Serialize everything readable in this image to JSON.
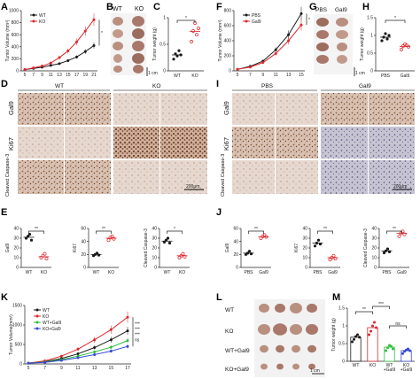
{
  "panel_letters": [
    "A",
    "B",
    "C",
    "D",
    "E",
    "F",
    "G",
    "H",
    "I",
    "J",
    "K",
    "L",
    "M"
  ],
  "colors": {
    "black": "#1a1a1a",
    "red": "#e0262c",
    "green": "#2fbf3b",
    "blue": "#3345d6",
    "tissue": "#b98f80",
    "stain_brown": "#7a4a2e",
    "stain_bg": "#c9a993"
  },
  "texts": {
    "B_wt": "WT",
    "B_ko": "KO",
    "B_scale": "1 cm",
    "D_wt": "WT",
    "D_ko": "KO",
    "D_row1": "Gal9",
    "D_row2": "Ki67",
    "D_row3": "Cleaved Caspase-3",
    "D_scale": "200μm",
    "G_pbs": "PBS",
    "G_gal9": "Gal9",
    "G_scale": "1 cm",
    "I_pbs": "PBS",
    "I_gal9": "Gal9",
    "I_row1": "Gal9",
    "I_row2": "Ki67",
    "I_row3": "Cleaved Caspase-3",
    "I_scale": "200μm",
    "L_row1": "WT",
    "L_row2": "KO",
    "L_row3": "WT+Gal9",
    "L_row4": "KO+Gal9",
    "L_scale": "1 cm",
    "sig_star": "*",
    "sig_double": "**",
    "sig_triple": "***",
    "sig_ns": "ns"
  },
  "chart_data": [
    {
      "id": "A",
      "type": "line",
      "ylabel": "Tumor Volume (mm³)",
      "ylim": [
        0,
        1000
      ],
      "yticks": [
        0,
        200,
        400,
        600,
        800,
        1000
      ],
      "x": [
        5,
        7,
        9,
        11,
        13,
        15,
        17,
        19,
        21
      ],
      "series": [
        {
          "name": "WT",
          "color": "#1a1a1a",
          "values": [
            20,
            40,
            60,
            90,
            120,
            170,
            230,
            320,
            420
          ]
        },
        {
          "name": "KO",
          "color": "#e0262c",
          "values": [
            20,
            50,
            80,
            130,
            220,
            330,
            480,
            660,
            850
          ]
        }
      ],
      "sig": "*"
    },
    {
      "id": "C",
      "type": "scatter",
      "ylabel": "Tumor weight (g)",
      "ylim": [
        0,
        1.0
      ],
      "yticks": [
        0,
        0.5,
        1.0
      ],
      "categories": [
        "WT",
        "KO"
      ],
      "colors": [
        "#1a1a1a",
        "#e0262c"
      ],
      "points": [
        [
          0.22,
          0.32,
          0.28,
          0.38,
          0.3
        ],
        [
          0.55,
          0.75,
          0.9,
          0.68,
          0.8
        ]
      ],
      "means": [
        0.3,
        0.74
      ],
      "sig": "*"
    },
    {
      "id": "F",
      "type": "line",
      "ylabel": "Tumor Volume (mm³)",
      "ylim": [
        0,
        800
      ],
      "yticks": [
        0,
        200,
        400,
        600,
        800
      ],
      "x": [
        5,
        7,
        9,
        11,
        13,
        15
      ],
      "series": [
        {
          "name": "PBS",
          "color": "#1a1a1a",
          "values": [
            20,
            60,
            130,
            280,
            480,
            760
          ]
        },
        {
          "name": "Gal9",
          "color": "#e0262c",
          "values": [
            20,
            50,
            110,
            230,
            400,
            610
          ]
        }
      ],
      "sig": "*"
    },
    {
      "id": "H",
      "type": "scatter",
      "ylabel": "Tumor weight (g)",
      "ylim": [
        0,
        1.5
      ],
      "yticks": [
        0,
        0.5,
        1.0,
        1.5
      ],
      "categories": [
        "PBS",
        "Gal9"
      ],
      "colors": [
        "#1a1a1a",
        "#e0262c"
      ],
      "points": [
        [
          0.85,
          0.95,
          1.05,
          0.9,
          1.0
        ],
        [
          0.6,
          0.7,
          0.75,
          0.72,
          0.68
        ]
      ],
      "means": [
        0.95,
        0.69
      ],
      "sig": "*"
    },
    {
      "id": "E1",
      "type": "scatter",
      "ylabel": "Gal9",
      "ylim": [
        0,
        40
      ],
      "yticks": [
        0,
        10,
        20,
        30,
        40
      ],
      "categories": [
        "WT",
        "KO"
      ],
      "colors": [
        "#1a1a1a",
        "#e0262c"
      ],
      "points": [
        [
          30,
          32,
          34,
          28
        ],
        [
          10,
          12,
          14,
          9
        ]
      ],
      "means": [
        31,
        11
      ],
      "sig": "**"
    },
    {
      "id": "E2",
      "type": "scatter",
      "ylabel": "Ki67",
      "ylim": [
        0,
        60
      ],
      "yticks": [
        0,
        20,
        40,
        60
      ],
      "categories": [
        "WT",
        "KO"
      ],
      "colors": [
        "#1a1a1a",
        "#e0262c"
      ],
      "points": [
        [
          18,
          20,
          22,
          19
        ],
        [
          42,
          46,
          48,
          44
        ]
      ],
      "means": [
        20,
        45
      ],
      "sig": "**"
    },
    {
      "id": "E3",
      "type": "scatter",
      "ylabel": "Cleaved Caspase-3",
      "ylim": [
        0,
        40
      ],
      "yticks": [
        0,
        10,
        20,
        30,
        40
      ],
      "categories": [
        "WT",
        "KO"
      ],
      "colors": [
        "#1a1a1a",
        "#e0262c"
      ],
      "points": [
        [
          26,
          28,
          30,
          25
        ],
        [
          10,
          12,
          14,
          11
        ]
      ],
      "means": [
        27,
        12
      ],
      "sig": "*"
    },
    {
      "id": "J1",
      "type": "scatter",
      "ylabel": "Gal9",
      "ylim": [
        0,
        60
      ],
      "yticks": [
        0,
        20,
        40,
        60
      ],
      "categories": [
        "PBS",
        "Gal9"
      ],
      "colors": [
        "#1a1a1a",
        "#e0262c"
      ],
      "points": [
        [
          20,
          22,
          25,
          21
        ],
        [
          45,
          48,
          50,
          47
        ]
      ],
      "means": [
        22,
        47
      ],
      "sig": "**"
    },
    {
      "id": "J2",
      "type": "scatter",
      "ylabel": "Ki67",
      "ylim": [
        0,
        40
      ],
      "yticks": [
        0,
        10,
        20,
        30,
        40
      ],
      "categories": [
        "PBS",
        "Gal9"
      ],
      "colors": [
        "#1a1a1a",
        "#e0262c"
      ],
      "points": [
        [
          22,
          25,
          28,
          24
        ],
        [
          8,
          10,
          12,
          9
        ]
      ],
      "means": [
        25,
        10
      ],
      "sig": "**"
    },
    {
      "id": "J3",
      "type": "scatter",
      "ylabel": "Cleaved Caspase-3",
      "ylim": [
        0,
        40
      ],
      "yticks": [
        0,
        10,
        20,
        30,
        40
      ],
      "categories": [
        "PBS",
        "Gal9"
      ],
      "colors": [
        "#1a1a1a",
        "#e0262c"
      ],
      "points": [
        [
          15,
          17,
          19,
          16
        ],
        [
          32,
          35,
          37,
          34
        ]
      ],
      "means": [
        17,
        35
      ],
      "sig": "**"
    },
    {
      "id": "K",
      "type": "line",
      "ylabel": "Tumor Volume(mm³)",
      "ylim": [
        0,
        1500
      ],
      "yticks": [
        0,
        500,
        1000,
        1500
      ],
      "x": [
        5,
        7,
        9,
        11,
        13,
        15,
        17
      ],
      "series": [
        {
          "name": "WT",
          "color": "#1a1a1a",
          "values": [
            20,
            60,
            140,
            260,
            420,
            620,
            850
          ]
        },
        {
          "name": "KO",
          "color": "#e0262c",
          "values": [
            20,
            80,
            200,
            380,
            620,
            880,
            1200
          ]
        },
        {
          "name": "WT+Gal9",
          "color": "#2fbf3b",
          "values": [
            20,
            50,
            110,
            200,
            310,
            430,
            600
          ]
        },
        {
          "name": "KO+Gal9",
          "color": "#3345d6",
          "values": [
            20,
            40,
            90,
            160,
            240,
            330,
            450
          ]
        }
      ],
      "sig": [
        "***",
        "***",
        "***",
        "ns"
      ]
    },
    {
      "id": "M",
      "type": "bar",
      "ylabel": "Tumor weight (g)",
      "ylim": [
        0,
        1.5
      ],
      "yticks": [
        0,
        0.5,
        1.0,
        1.5
      ],
      "categories": [
        "WT",
        "KO",
        "WT\n+Gal9",
        "KO\n+Gal9"
      ],
      "colors": [
        "#1a1a1a",
        "#e0262c",
        "#2fbf3b",
        "#3345d6"
      ],
      "values": [
        0.68,
        0.95,
        0.4,
        0.3
      ],
      "points": [
        [
          0.55,
          0.62,
          0.7,
          0.75,
          0.68
        ],
        [
          0.75,
          0.85,
          1.0,
          1.1,
          0.95
        ],
        [
          0.3,
          0.38,
          0.45,
          0.42,
          0.35
        ],
        [
          0.22,
          0.28,
          0.32,
          0.35,
          0.3
        ]
      ],
      "sig": [
        "**",
        "***",
        "ns"
      ]
    }
  ]
}
